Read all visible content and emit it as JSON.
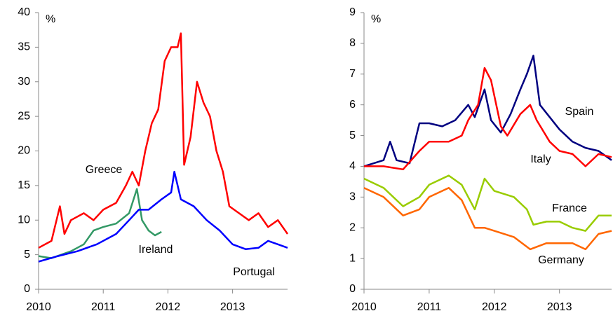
{
  "chart_data": [
    {
      "type": "line",
      "y_unit": "%",
      "xlim": [
        2010,
        2013.85
      ],
      "xticks": [
        2010,
        2011,
        2012,
        2013
      ],
      "ylim": [
        0,
        40
      ],
      "yticks": [
        0,
        5,
        10,
        15,
        20,
        25,
        30,
        35,
        40
      ],
      "series": [
        {
          "name": "Greece",
          "color": "#ff0000",
          "x": [
            2010.0,
            2010.2,
            2010.33,
            2010.4,
            2010.5,
            2010.7,
            2010.85,
            2011.0,
            2011.2,
            2011.35,
            2011.45,
            2011.55,
            2011.65,
            2011.75,
            2011.85,
            2011.95,
            2012.05,
            2012.15,
            2012.2,
            2012.25,
            2012.35,
            2012.45,
            2012.55,
            2012.65,
            2012.75,
            2012.85,
            2012.95,
            2013.1,
            2013.25,
            2013.4,
            2013.55,
            2013.7,
            2013.85
          ],
          "values": [
            6,
            7,
            12,
            8,
            10,
            11,
            10,
            11.5,
            12.5,
            15,
            17,
            15,
            20,
            24,
            26,
            33,
            35,
            35,
            37,
            18,
            22,
            30,
            27,
            25,
            20,
            17,
            12,
            11,
            10,
            11,
            9,
            10,
            8
          ]
        },
        {
          "name": "Ireland",
          "color": "#339966",
          "x": [
            2010.0,
            2010.2,
            2010.5,
            2010.7,
            2010.85,
            2011.0,
            2011.2,
            2011.4,
            2011.52,
            2011.6,
            2011.7,
            2011.8,
            2011.9
          ],
          "values": [
            4.8,
            4.5,
            5.5,
            6.5,
            8.5,
            9,
            9.5,
            11,
            14.5,
            10,
            8.5,
            7.8,
            8.3
          ]
        },
        {
          "name": "Portugal",
          "color": "#0000ff",
          "x": [
            2010.0,
            2010.3,
            2010.6,
            2010.9,
            2011.2,
            2011.4,
            2011.55,
            2011.7,
            2011.9,
            2012.05,
            2012.1,
            2012.2,
            2012.4,
            2012.6,
            2012.8,
            2013.0,
            2013.2,
            2013.4,
            2013.55,
            2013.7,
            2013.85
          ],
          "values": [
            4,
            4.8,
            5.5,
            6.5,
            8,
            10,
            11.5,
            11.5,
            13,
            14,
            17,
            13,
            12,
            10,
            8.5,
            6.5,
            5.8,
            6,
            7,
            6.5,
            6
          ]
        }
      ]
    },
    {
      "type": "line",
      "y_unit": "%",
      "xlim": [
        2010,
        2013.8
      ],
      "xticks": [
        2010,
        2011,
        2012,
        2013
      ],
      "ylim": [
        0,
        9
      ],
      "yticks": [
        0,
        1,
        2,
        3,
        4,
        5,
        6,
        7,
        8,
        9
      ],
      "series": [
        {
          "name": "Spain",
          "color": "#000080",
          "x": [
            2010.0,
            2010.3,
            2010.4,
            2010.5,
            2010.7,
            2010.85,
            2011.0,
            2011.2,
            2011.4,
            2011.6,
            2011.7,
            2011.85,
            2011.95,
            2012.1,
            2012.25,
            2012.4,
            2012.5,
            2012.6,
            2012.7,
            2012.85,
            2013.0,
            2013.2,
            2013.4,
            2013.6,
            2013.8
          ],
          "values": [
            4,
            4.2,
            4.8,
            4.2,
            4.1,
            5.4,
            5.4,
            5.3,
            5.5,
            6.0,
            5.6,
            6.5,
            5.5,
            5.1,
            5.7,
            6.5,
            7.0,
            7.6,
            6.0,
            5.6,
            5.2,
            4.8,
            4.6,
            4.5,
            4.2
          ]
        },
        {
          "name": "Italy",
          "color": "#ff0000",
          "x": [
            2010.0,
            2010.3,
            2010.6,
            2010.85,
            2011.0,
            2011.3,
            2011.5,
            2011.6,
            2011.75,
            2011.85,
            2011.95,
            2012.1,
            2012.2,
            2012.4,
            2012.55,
            2012.65,
            2012.85,
            2013.0,
            2013.2,
            2013.4,
            2013.6,
            2013.8
          ],
          "values": [
            4.0,
            4.0,
            3.9,
            4.5,
            4.8,
            4.8,
            5.0,
            5.5,
            6.0,
            7.2,
            6.8,
            5.3,
            5.0,
            5.7,
            6.0,
            5.5,
            4.8,
            4.5,
            4.4,
            4.0,
            4.4,
            4.3
          ]
        },
        {
          "name": "France",
          "color": "#99cc00",
          "x": [
            2010.0,
            2010.3,
            2010.6,
            2010.85,
            2011.0,
            2011.3,
            2011.5,
            2011.7,
            2011.85,
            2012.0,
            2012.3,
            2012.5,
            2012.6,
            2012.8,
            2013.0,
            2013.2,
            2013.4,
            2013.6,
            2013.8
          ],
          "values": [
            3.6,
            3.3,
            2.7,
            3.0,
            3.4,
            3.7,
            3.4,
            2.6,
            3.6,
            3.2,
            3.0,
            2.6,
            2.1,
            2.2,
            2.2,
            2.0,
            1.9,
            2.4,
            2.4
          ]
        },
        {
          "name": "Germany",
          "color": "#ff6600",
          "x": [
            2010.0,
            2010.3,
            2010.6,
            2010.85,
            2011.0,
            2011.3,
            2011.5,
            2011.7,
            2011.85,
            2012.0,
            2012.3,
            2012.55,
            2012.8,
            2013.0,
            2013.2,
            2013.4,
            2013.6,
            2013.8
          ],
          "values": [
            3.3,
            3.0,
            2.4,
            2.6,
            3.0,
            3.3,
            2.9,
            2.0,
            2.0,
            1.9,
            1.7,
            1.3,
            1.5,
            1.5,
            1.5,
            1.3,
            1.8,
            1.9
          ]
        }
      ]
    }
  ]
}
